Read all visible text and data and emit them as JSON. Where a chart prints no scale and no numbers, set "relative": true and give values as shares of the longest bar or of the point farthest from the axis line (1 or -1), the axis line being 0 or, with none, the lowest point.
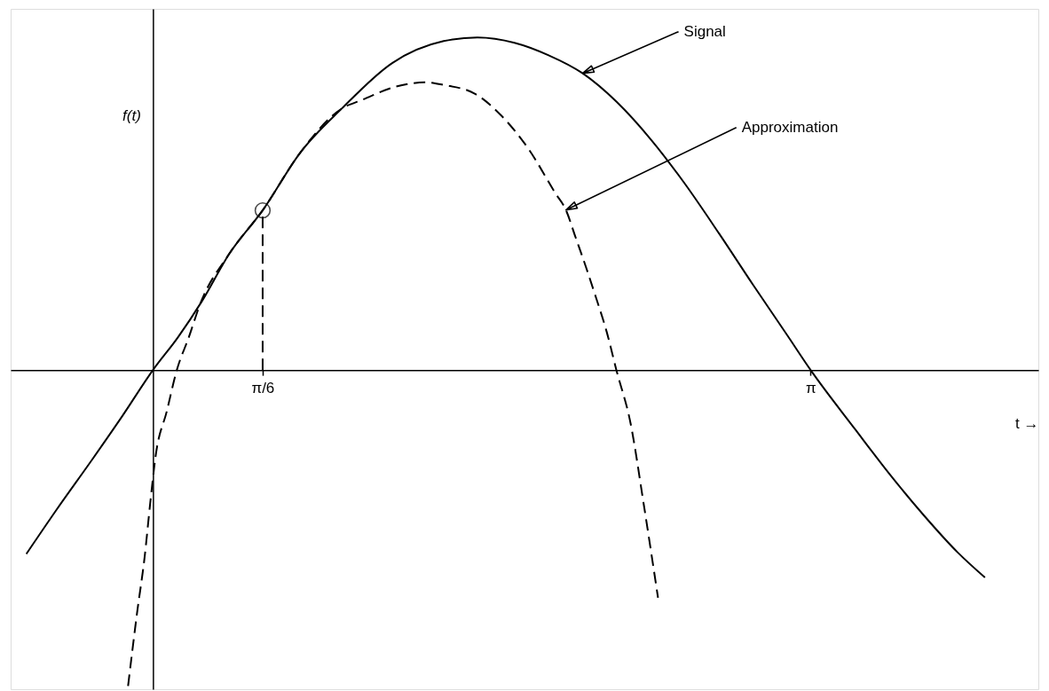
{
  "chart_data": {
    "type": "line",
    "relative": true,
    "xlabel": "t →",
    "ylabel": "f(t)",
    "xlim": [
      -0.68,
      4.23
    ],
    "xticks": [
      {
        "value": 0.5236,
        "label": "π/6"
      },
      {
        "value": 3.1416,
        "label": "π"
      }
    ],
    "grid": false,
    "tick_labels": "x",
    "series": [
      {
        "color": "#000000",
        "line_style": "solid",
        "x": [
          -0.605,
          -0.464,
          -0.288,
          -0.146,
          0,
          0.119,
          0.233,
          0.364,
          0.524,
          0.703,
          0.902,
          1.143,
          1.389,
          1.55,
          1.727,
          1.888,
          2.053,
          2.214,
          2.379,
          2.54,
          2.705,
          2.866,
          3.032,
          3.142,
          3.357,
          3.518,
          3.683,
          3.844,
          3.975
        ],
        "values": [
          -0.553,
          -0.423,
          -0.267,
          -0.138,
          0,
          0.098,
          0.206,
          0.349,
          0.48,
          0.653,
          0.786,
          0.923,
          0.989,
          1.0,
          0.984,
          0.947,
          0.892,
          0.807,
          0.693,
          0.561,
          0.41,
          0.257,
          0.103,
          0,
          -0.18,
          -0.312,
          -0.437,
          -0.548,
          -0.624
        ]
      },
      {
        "color": "#000000",
        "line_style": "dashed",
        "x": [
          -0.119,
          -0.076,
          -0.04,
          -0.013,
          0.013,
          0.066,
          0.114,
          0.171,
          0.224,
          0.364,
          0.524,
          0.703,
          0.902,
          0.999,
          1.16,
          1.308,
          1.389,
          1.537,
          1.664,
          1.795,
          1.922,
          1.973,
          2.019,
          2.07,
          2.117,
          2.168,
          2.214,
          2.282,
          2.345,
          2.413
        ],
        "values": [
          -0.95,
          -0.73,
          -0.563,
          -0.399,
          -0.257,
          -0.124,
          0,
          0.098,
          0.196,
          0.349,
          0.48,
          0.653,
          0.786,
          0.812,
          0.852,
          0.865,
          0.857,
          0.831,
          0.765,
          0.664,
          0.532,
          0.481,
          0.399,
          0.307,
          0.217,
          0.114,
          0,
          -0.161,
          -0.405,
          -0.685
        ]
      },
      {
        "color": "#000000",
        "line_style": "dashed",
        "x": [
          0.524,
          0.524
        ],
        "values": [
          0,
          0.48
        ]
      },
      {
        "type": "scatter",
        "color": "#000000",
        "marker": "circle",
        "x": [
          0.524
        ],
        "values": [
          0.48
        ]
      }
    ],
    "annotations": [
      {
        "text": "Signal",
        "x": 2.053,
        "y": 0.892
      },
      {
        "text": "Approximation",
        "x": 1.973,
        "y": 0.481
      }
    ]
  }
}
